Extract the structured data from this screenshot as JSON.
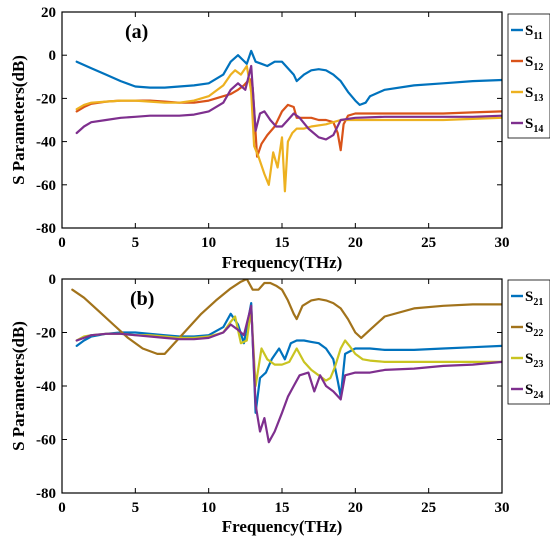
{
  "chart_data": [
    {
      "type": "line",
      "panel_label": "(a)",
      "xlabel": "Frequency(THz)",
      "ylabel": "S Parameters(dB)",
      "xlim": [
        0,
        30
      ],
      "ylim": [
        -80,
        20
      ],
      "xticks": [
        "0",
        "5",
        "10",
        "15",
        "20",
        "25",
        "30"
      ],
      "yticks": [
        "20",
        "0",
        "-20",
        "-40",
        "-60",
        "-80"
      ],
      "grid": false,
      "legend_position": "right",
      "series": [
        {
          "name": "S11",
          "label_main": "S",
          "label_sub": "11",
          "color": "#0072BD",
          "x": [
            1,
            2,
            3,
            4,
            5,
            6,
            7,
            8,
            9,
            10,
            11,
            11.5,
            12,
            12.3,
            12.6,
            12.9,
            13.2,
            13.6,
            14,
            14.5,
            15,
            15.4,
            15.8,
            16,
            16.5,
            17,
            17.5,
            18,
            18.5,
            19,
            19.5,
            20,
            20.3,
            20.7,
            21,
            22,
            24,
            26,
            28,
            30
          ],
          "y": [
            -3,
            -6,
            -9,
            -12,
            -14.5,
            -15,
            -15,
            -14.5,
            -14,
            -13,
            -9,
            -3,
            0,
            -2,
            -4,
            2,
            -3,
            -4,
            -5,
            -3,
            -3,
            -6,
            -9,
            -12,
            -9,
            -7,
            -6.5,
            -7,
            -9,
            -12,
            -17,
            -21,
            -23,
            -22,
            -19,
            -16,
            -14,
            -13,
            -12,
            -11.5
          ]
        },
        {
          "name": "S12",
          "label_main": "S",
          "label_sub": "12",
          "color": "#D95319",
          "x": [
            1,
            1.5,
            2,
            3,
            4,
            5,
            6,
            7,
            8,
            9,
            10,
            11,
            11.5,
            12,
            12.4,
            12.8,
            13,
            13.3,
            13.6,
            14,
            14.5,
            15,
            15.4,
            15.8,
            16,
            16.5,
            17,
            17.5,
            18,
            18.5,
            18.8,
            19,
            19.2,
            19.5,
            20,
            21,
            22,
            24,
            26,
            28,
            30
          ],
          "y": [
            -26,
            -24,
            -22.5,
            -21.5,
            -21,
            -21,
            -21,
            -21.5,
            -22,
            -22,
            -21,
            -19,
            -18,
            -16,
            -14,
            -11,
            -15,
            -47,
            -41,
            -37,
            -33,
            -26,
            -23,
            -24,
            -29,
            -29,
            -29,
            -30,
            -30,
            -31,
            -36,
            -44,
            -32,
            -28,
            -27,
            -27,
            -27,
            -27,
            -27,
            -26.5,
            -26
          ]
        },
        {
          "name": "S13",
          "label_main": "S",
          "label_sub": "13",
          "color": "#EDB120",
          "x": [
            1,
            1.5,
            2,
            3,
            4,
            5,
            6,
            7,
            8,
            9,
            10,
            11,
            11.5,
            11.8,
            12.2,
            12.6,
            12.9,
            13.1,
            13.4,
            13.8,
            14.1,
            14.4,
            14.7,
            15,
            15.2,
            15.4,
            15.7,
            16,
            16.5,
            17,
            18,
            19,
            20,
            21,
            22,
            24,
            26,
            28,
            30
          ],
          "y": [
            -25,
            -23,
            -22,
            -21.5,
            -21,
            -21,
            -21.5,
            -22,
            -22,
            -21,
            -19,
            -14,
            -9,
            -7,
            -9,
            -5,
            -17,
            -42,
            -47,
            -55,
            -60,
            -45,
            -52,
            -38,
            -63,
            -40,
            -36,
            -34,
            -34,
            -33,
            -32,
            -30,
            -30,
            -30,
            -30,
            -30,
            -30,
            -29.5,
            -29
          ]
        },
        {
          "name": "S14",
          "label_main": "S",
          "label_sub": "14",
          "color": "#7E2F8E",
          "x": [
            1,
            1.5,
            2,
            3,
            4,
            5,
            6,
            7,
            8,
            9,
            10,
            11,
            11.5,
            12,
            12.5,
            12.9,
            13.2,
            13.5,
            13.8,
            14.2,
            14.6,
            15,
            15.4,
            15.8,
            16.2,
            16.8,
            17.5,
            18,
            18.5,
            19,
            20,
            22,
            24,
            26,
            28,
            30
          ],
          "y": [
            -36,
            -33,
            -31,
            -30,
            -29,
            -28.5,
            -28,
            -28,
            -28,
            -27.5,
            -26,
            -22,
            -16,
            -13,
            -16,
            -5,
            -35,
            -27,
            -26,
            -30,
            -33,
            -33,
            -30,
            -27,
            -29,
            -34,
            -38,
            -39,
            -37,
            -30,
            -29,
            -28.5,
            -28.5,
            -28.5,
            -28.5,
            -28
          ]
        }
      ]
    },
    {
      "type": "line",
      "panel_label": "(b)",
      "xlabel": "Frequency(THz)",
      "ylabel": "S Parameters(dB)",
      "xlim": [
        0,
        30
      ],
      "ylim": [
        -80,
        0
      ],
      "xticks": [
        "0",
        "5",
        "10",
        "15",
        "20",
        "25",
        "30"
      ],
      "yticks": [
        "0",
        "-20",
        "-40",
        "-60",
        "-80"
      ],
      "grid": false,
      "legend_position": "right",
      "series": [
        {
          "name": "S21",
          "label_main": "S",
          "label_sub": "21",
          "color": "#0072BD",
          "x": [
            1,
            1.5,
            2,
            3,
            4,
            5,
            6,
            7,
            8,
            9,
            10,
            11,
            11.5,
            12,
            12.4,
            12.9,
            13.2,
            13.5,
            13.9,
            14.3,
            14.8,
            15.2,
            15.6,
            16,
            16.5,
            17,
            17.5,
            18,
            18.5,
            18.8,
            19,
            19.3,
            20,
            21,
            22,
            24,
            26,
            28,
            30
          ],
          "y": [
            -25,
            -23,
            -21.5,
            -20.5,
            -20,
            -20,
            -20.5,
            -21,
            -21.5,
            -21.5,
            -21,
            -18,
            -13,
            -17,
            -24,
            -9,
            -50,
            -37,
            -35,
            -30,
            -26,
            -30,
            -24,
            -23,
            -23,
            -23.5,
            -24,
            -26,
            -30,
            -38,
            -44,
            -28,
            -26,
            -26,
            -26.5,
            -26.5,
            -26,
            -25.5,
            -25
          ]
        },
        {
          "name": "S22",
          "label_main": "S",
          "label_sub": "22",
          "color": "#A2731B",
          "x": [
            0.7,
            1.5,
            2.5,
            3.5,
            4.5,
            5.5,
            6.5,
            7,
            7.5,
            8.5,
            9.5,
            10.5,
            11.5,
            12.2,
            12.6,
            13,
            13.4,
            13.8,
            14.2,
            14.6,
            15,
            15.4,
            15.8,
            16,
            16.4,
            17,
            17.5,
            18,
            18.5,
            19,
            19.5,
            20,
            20.4,
            21,
            22,
            24,
            26,
            28,
            30
          ],
          "y": [
            -4,
            -7,
            -12,
            -17,
            -22,
            -26,
            -28,
            -28,
            -25,
            -19,
            -13,
            -8,
            -3.5,
            -1,
            0,
            -4,
            -4,
            -1.5,
            -1.5,
            -2.5,
            -4,
            -8,
            -13,
            -15,
            -10,
            -8,
            -7.5,
            -8,
            -9,
            -11,
            -15,
            -20,
            -22,
            -19,
            -14,
            -11,
            -10,
            -9.5,
            -9.5
          ]
        },
        {
          "name": "S23",
          "label_main": "S",
          "label_sub": "23",
          "color": "#C9C421",
          "x": [
            1,
            1.5,
            2,
            3,
            4,
            5,
            6,
            7,
            8,
            9,
            10,
            11,
            11.5,
            11.8,
            12.2,
            12.6,
            12.9,
            13.2,
            13.6,
            14,
            14.5,
            15,
            15.5,
            16,
            16.5,
            17,
            17.5,
            18,
            18.3,
            18.6,
            19,
            19.3,
            19.6,
            20,
            20.5,
            21,
            22,
            24,
            26,
            28,
            30
          ],
          "y": [
            -23,
            -21.5,
            -21,
            -20.5,
            -20.5,
            -21,
            -21,
            -21.5,
            -22,
            -22,
            -21.5,
            -20,
            -16,
            -14,
            -24,
            -23,
            -11,
            -40,
            -26,
            -30,
            -32,
            -32,
            -31,
            -26,
            -31,
            -34,
            -36,
            -38,
            -37,
            -33,
            -26,
            -23,
            -25,
            -28,
            -30,
            -30.5,
            -31,
            -31,
            -31,
            -31,
            -31
          ]
        },
        {
          "name": "S24",
          "label_main": "S",
          "label_sub": "24",
          "color": "#7E2F8E",
          "x": [
            1,
            1.5,
            2,
            3,
            4,
            5,
            6,
            7,
            8,
            9,
            10,
            11,
            11.5,
            12,
            12.4,
            12.9,
            13.2,
            13.5,
            13.8,
            14.1,
            14.5,
            15,
            15.4,
            15.8,
            16.2,
            16.8,
            17.2,
            17.6,
            18,
            18.5,
            19,
            19.3,
            20,
            21,
            22,
            24,
            26,
            28,
            30
          ],
          "y": [
            -23,
            -22,
            -21,
            -20.5,
            -20.5,
            -21,
            -21.5,
            -22,
            -22.5,
            -22.5,
            -22,
            -20,
            -17,
            -19,
            -21,
            -10,
            -47,
            -57,
            -52,
            -61,
            -57,
            -50,
            -44,
            -40,
            -36,
            -35,
            -42,
            -36,
            -40,
            -42,
            -45,
            -36,
            -35,
            -35,
            -34,
            -33.5,
            -32.5,
            -32,
            -31
          ]
        }
      ]
    }
  ]
}
